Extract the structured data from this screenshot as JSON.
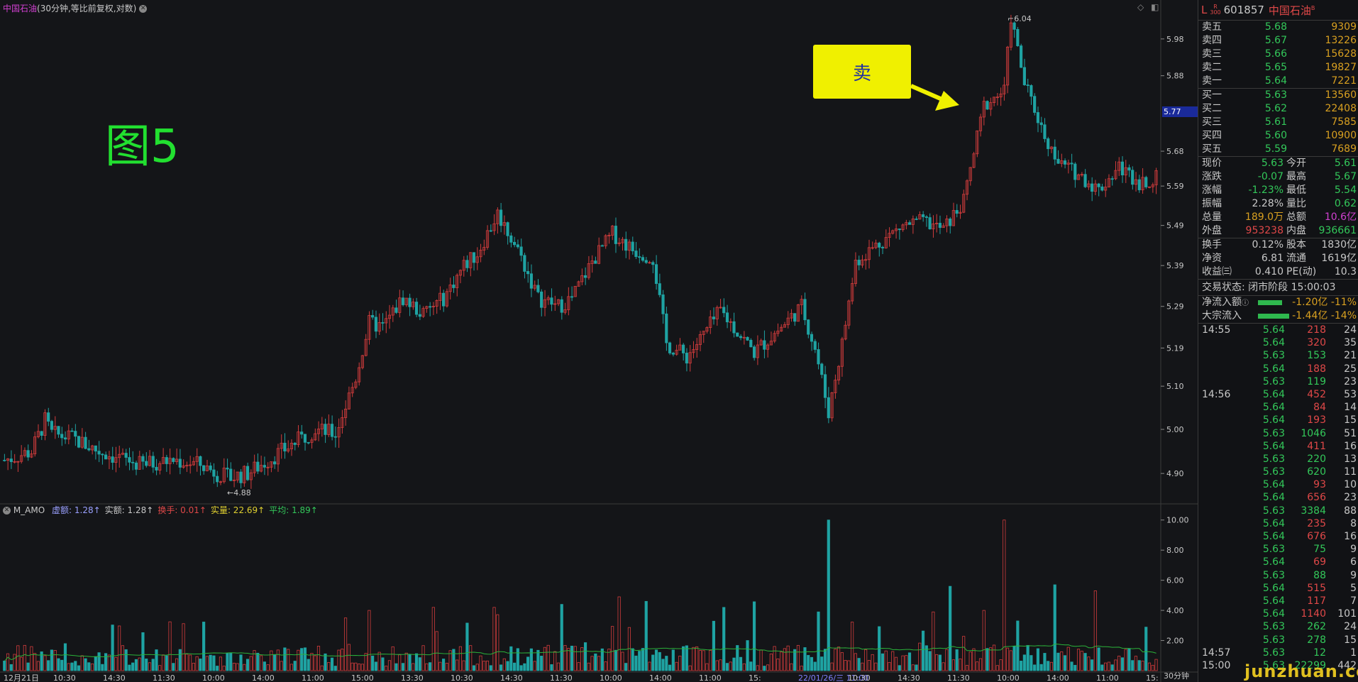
{
  "header": {
    "stock_name": "中国石油",
    "period_info": "(30分钟,等比前复权,对数)"
  },
  "indicator": {
    "name": "M_AMO",
    "items": [
      {
        "label": "虚额:",
        "value": "1.28",
        "color": "#9aa0ff"
      },
      {
        "label": "实额:",
        "value": "1.28",
        "color": "#c8c8c8"
      },
      {
        "label": "换手:",
        "value": "0.01",
        "color": "#e04848"
      },
      {
        "label": "实量:",
        "value": "22.69",
        "color": "#e0d030"
      },
      {
        "label": "平均:",
        "value": "1.89",
        "color": "#33c85a"
      }
    ]
  },
  "annotations": {
    "figure_label": "图5",
    "sell_label": "卖",
    "high_label": "6.04",
    "low_label": "4.88"
  },
  "current_price_tag": "5.77",
  "period_tag": "30分钟",
  "watermark": "junzhuan.com",
  "chart_data": {
    "type": "candlestick",
    "price_axis": {
      "ticks": [
        "5.98",
        "5.88",
        "5.68",
        "5.59",
        "5.49",
        "5.39",
        "5.29",
        "5.19",
        "5.10",
        "5.00",
        "4.90"
      ],
      "scale": "log",
      "range": [
        4.84,
        6.06
      ]
    },
    "volume_axis": {
      "ticks": [
        "10.00",
        "8.00",
        "6.00",
        "4.00",
        "2.00"
      ],
      "range": [
        0,
        10.6
      ]
    },
    "x_labels": [
      "12月21日",
      "10:30",
      "14:30",
      "11:30",
      "10:00",
      "14:00",
      "11:00",
      "15:00",
      "13:30",
      "10:30",
      "14:30",
      "11:30",
      "10:00",
      "14:00",
      "11:00",
      "15:",
      "22/01/26/三 11:00",
      "10:30",
      "14:30",
      "11:30",
      "10:00",
      "14:00",
      "11:00",
      "15:"
    ],
    "anchors": [
      [
        0,
        4.93
      ],
      [
        8,
        4.95
      ],
      [
        12,
        5.02
      ],
      [
        14,
        4.99
      ],
      [
        20,
        4.98
      ],
      [
        28,
        4.95
      ],
      [
        40,
        4.92
      ],
      [
        50,
        4.93
      ],
      [
        58,
        4.92
      ],
      [
        66,
        4.89
      ],
      [
        72,
        4.9
      ],
      [
        80,
        4.94
      ],
      [
        92,
        5.0
      ],
      [
        98,
        4.99
      ],
      [
        104,
        5.12
      ],
      [
        108,
        5.25
      ],
      [
        112,
        5.24
      ],
      [
        118,
        5.31
      ],
      [
        124,
        5.27
      ],
      [
        130,
        5.31
      ],
      [
        136,
        5.39
      ],
      [
        140,
        5.42
      ],
      [
        146,
        5.52
      ],
      [
        152,
        5.43
      ],
      [
        158,
        5.31
      ],
      [
        164,
        5.29
      ],
      [
        168,
        5.31
      ],
      [
        174,
        5.4
      ],
      [
        180,
        5.47
      ],
      [
        186,
        5.43
      ],
      [
        192,
        5.41
      ],
      [
        196,
        5.2
      ],
      [
        202,
        5.17
      ],
      [
        206,
        5.21
      ],
      [
        212,
        5.28
      ],
      [
        218,
        5.22
      ],
      [
        222,
        5.18
      ],
      [
        230,
        5.24
      ],
      [
        236,
        5.29
      ],
      [
        240,
        5.19
      ],
      [
        244,
        5.04
      ],
      [
        248,
        5.2
      ],
      [
        252,
        5.4
      ],
      [
        258,
        5.44
      ],
      [
        266,
        5.49
      ],
      [
        272,
        5.5
      ],
      [
        278,
        5.48
      ],
      [
        284,
        5.55
      ],
      [
        290,
        5.8
      ],
      [
        296,
        5.84
      ],
      [
        298,
        6.04
      ],
      [
        302,
        5.86
      ],
      [
        308,
        5.72
      ],
      [
        312,
        5.65
      ],
      [
        318,
        5.62
      ],
      [
        324,
        5.58
      ],
      [
        330,
        5.64
      ],
      [
        336,
        5.6
      ],
      [
        341,
        5.61
      ]
    ],
    "volume_average": 1.89
  }
}
